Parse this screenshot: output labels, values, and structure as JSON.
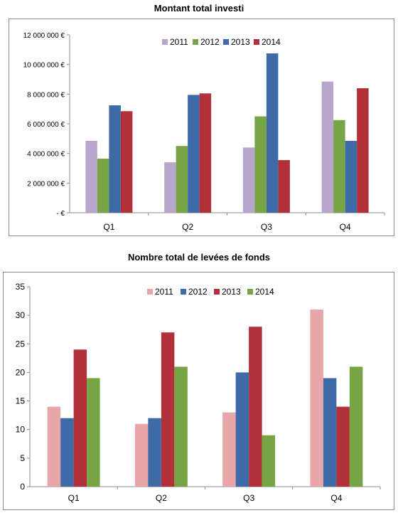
{
  "chart_data": [
    {
      "type": "bar",
      "title": "Montant total investi",
      "categories": [
        "Q1",
        "Q2",
        "Q3",
        "Q4"
      ],
      "series": [
        {
          "name": "2011",
          "values": [
            4850000,
            3400000,
            4400000,
            8850000
          ],
          "color": "#b9a6cc"
        },
        {
          "name": "2012",
          "values": [
            3650000,
            4500000,
            6500000,
            6250000
          ],
          "color": "#77a444"
        },
        {
          "name": "2013",
          "values": [
            7250000,
            7950000,
            10750000,
            4850000
          ],
          "color": "#3e6aa8"
        },
        {
          "name": "2014",
          "values": [
            6850000,
            8050000,
            3550000,
            8400000
          ],
          "color": "#b2303a"
        }
      ],
      "ylim": [
        0,
        12000000
      ],
      "y_ticks": [
        0,
        2000000,
        4000000,
        6000000,
        8000000,
        10000000,
        12000000
      ],
      "y_tick_labels": [
        "- €",
        "2 000 000 €",
        "4 000 000 €",
        "6 000 000 €",
        "8 000 000 €",
        "10 000 000 €",
        "12 000 000 €"
      ],
      "grid": false,
      "legend": "top"
    },
    {
      "type": "bar",
      "title": "Nombre total de levées de fonds",
      "categories": [
        "Q1",
        "Q2",
        "Q3",
        "Q4"
      ],
      "series": [
        {
          "name": "2011",
          "values": [
            14,
            11,
            13,
            31
          ],
          "color": "#e8a6a9"
        },
        {
          "name": "2012",
          "values": [
            12,
            12,
            20,
            19
          ],
          "color": "#3e6aa8"
        },
        {
          "name": "2013",
          "values": [
            24,
            27,
            28,
            14
          ],
          "color": "#b2303a"
        },
        {
          "name": "2014",
          "values": [
            19,
            21,
            9,
            21
          ],
          "color": "#77a444"
        }
      ],
      "ylim": [
        0,
        35
      ],
      "y_ticks": [
        0,
        5,
        10,
        15,
        20,
        25,
        30,
        35
      ],
      "y_tick_labels": [
        "0",
        "5",
        "10",
        "15",
        "20",
        "25",
        "30",
        "35"
      ],
      "grid": false,
      "legend": "top"
    }
  ]
}
